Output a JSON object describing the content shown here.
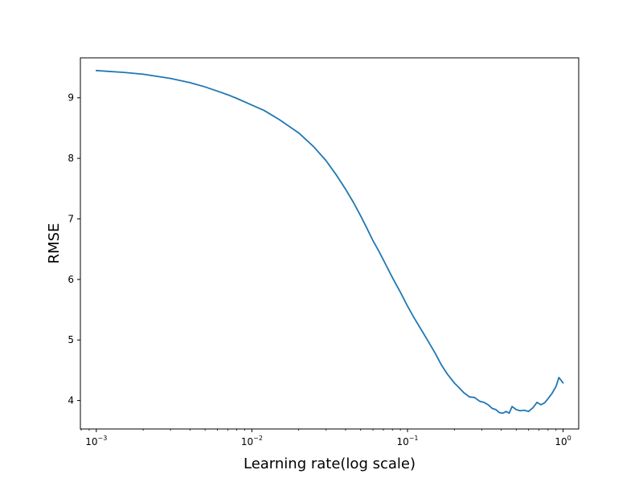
{
  "chart_data": {
    "type": "line",
    "xlabel": "Learning rate(log scale)",
    "ylabel": "RMSE",
    "x_scale": "log",
    "xlim": [
      0.00079,
      1.26
    ],
    "ylim": [
      3.53,
      9.66
    ],
    "x_ticks": [
      {
        "value": 0.001,
        "base": "10",
        "exp": "−3"
      },
      {
        "value": 0.01,
        "base": "10",
        "exp": "−2"
      },
      {
        "value": 0.1,
        "base": "10",
        "exp": "−1"
      },
      {
        "value": 1,
        "base": "10",
        "exp": "0"
      }
    ],
    "y_ticks": [
      {
        "value": 4,
        "label": "4"
      },
      {
        "value": 5,
        "label": "5"
      },
      {
        "value": 6,
        "label": "6"
      },
      {
        "value": 7,
        "label": "7"
      },
      {
        "value": 8,
        "label": "8"
      },
      {
        "value": 9,
        "label": "9"
      }
    ],
    "grid": false,
    "series": [
      {
        "color": "#1f77b4",
        "points": [
          [
            0.001,
            9.45
          ],
          [
            0.0015,
            9.42
          ],
          [
            0.002,
            9.39
          ],
          [
            0.003,
            9.32
          ],
          [
            0.004,
            9.25
          ],
          [
            0.005,
            9.18
          ],
          [
            0.006,
            9.11
          ],
          [
            0.007,
            9.05
          ],
          [
            0.008,
            8.99
          ],
          [
            0.01,
            8.88
          ],
          [
            0.012,
            8.79
          ],
          [
            0.015,
            8.64
          ],
          [
            0.02,
            8.42
          ],
          [
            0.025,
            8.19
          ],
          [
            0.03,
            7.96
          ],
          [
            0.035,
            7.72
          ],
          [
            0.04,
            7.49
          ],
          [
            0.045,
            7.27
          ],
          [
            0.05,
            7.05
          ],
          [
            0.055,
            6.84
          ],
          [
            0.06,
            6.64
          ],
          [
            0.066,
            6.45
          ],
          [
            0.072,
            6.26
          ],
          [
            0.08,
            6.03
          ],
          [
            0.09,
            5.79
          ],
          [
            0.1,
            5.56
          ],
          [
            0.11,
            5.37
          ],
          [
            0.12,
            5.21
          ],
          [
            0.135,
            4.99
          ],
          [
            0.15,
            4.79
          ],
          [
            0.165,
            4.59
          ],
          [
            0.18,
            4.44
          ],
          [
            0.2,
            4.29
          ],
          [
            0.215,
            4.21
          ],
          [
            0.23,
            4.13
          ],
          [
            0.25,
            4.06
          ],
          [
            0.27,
            4.05
          ],
          [
            0.29,
            3.99
          ],
          [
            0.31,
            3.97
          ],
          [
            0.33,
            3.93
          ],
          [
            0.35,
            3.87
          ],
          [
            0.37,
            3.85
          ],
          [
            0.39,
            3.8
          ],
          [
            0.41,
            3.79
          ],
          [
            0.43,
            3.82
          ],
          [
            0.45,
            3.79
          ],
          [
            0.47,
            3.9
          ],
          [
            0.5,
            3.85
          ],
          [
            0.53,
            3.83
          ],
          [
            0.56,
            3.84
          ],
          [
            0.6,
            3.82
          ],
          [
            0.64,
            3.88
          ],
          [
            0.68,
            3.97
          ],
          [
            0.72,
            3.93
          ],
          [
            0.76,
            3.96
          ],
          [
            0.8,
            4.03
          ],
          [
            0.85,
            4.12
          ],
          [
            0.9,
            4.23
          ],
          [
            0.94,
            4.38
          ],
          [
            1.0,
            4.29
          ]
        ]
      }
    ]
  }
}
